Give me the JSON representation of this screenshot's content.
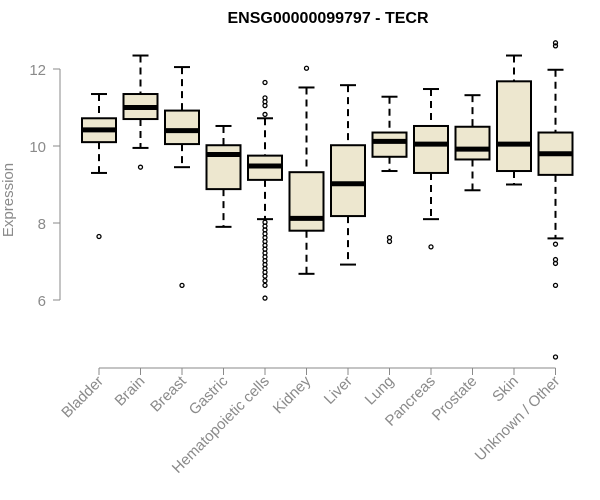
{
  "chart_data": {
    "type": "box",
    "title": "ENSG00000099797 - TECR",
    "xlabel": "",
    "ylabel": "Expression",
    "ylim": [
      4.3,
      13.0
    ],
    "yticks": [
      6,
      8,
      10,
      12
    ],
    "grid": false,
    "legend": "none",
    "categories": [
      "Bladder",
      "Brain",
      "Breast",
      "Gastric",
      "Hematopoietic cells",
      "Kidney",
      "Liver",
      "Lung",
      "Pancreas",
      "Prostate",
      "Skin",
      "Unknown / Other"
    ],
    "boxes": [
      {
        "category": "Bladder",
        "whisker_low": 9.3,
        "q1": 10.1,
        "median": 10.42,
        "q3": 10.72,
        "whisker_high": 11.35,
        "outliers": [
          7.65
        ]
      },
      {
        "category": "Brain",
        "whisker_low": 9.95,
        "q1": 10.7,
        "median": 11.0,
        "q3": 11.35,
        "whisker_high": 12.35,
        "outliers": [
          9.45
        ]
      },
      {
        "category": "Breast",
        "whisker_low": 9.45,
        "q1": 10.05,
        "median": 10.4,
        "q3": 10.92,
        "whisker_high": 12.05,
        "outliers": [
          6.38
        ]
      },
      {
        "category": "Gastric",
        "whisker_low": 7.9,
        "q1": 8.88,
        "median": 9.78,
        "q3": 10.02,
        "whisker_high": 10.52,
        "outliers": []
      },
      {
        "category": "Hematopoietic cells",
        "whisker_low": 8.1,
        "q1": 9.12,
        "median": 9.48,
        "q3": 9.75,
        "whisker_high": 10.72,
        "outliers": [
          11.65,
          11.25,
          11.15,
          11.05,
          10.82,
          8.02,
          7.92,
          7.82,
          7.72,
          7.62,
          7.52,
          7.42,
          7.32,
          7.22,
          7.12,
          7.02,
          6.92,
          6.82,
          6.72,
          6.62,
          6.5,
          6.38,
          6.05
        ]
      },
      {
        "category": "Kidney",
        "whisker_low": 6.68,
        "q1": 7.8,
        "median": 8.12,
        "q3": 9.32,
        "whisker_high": 11.52,
        "outliers": [
          12.02
        ]
      },
      {
        "category": "Liver",
        "whisker_low": 6.92,
        "q1": 8.18,
        "median": 9.02,
        "q3": 10.02,
        "whisker_high": 11.58,
        "outliers": []
      },
      {
        "category": "Lung",
        "whisker_low": 9.35,
        "q1": 9.72,
        "median": 10.12,
        "q3": 10.35,
        "whisker_high": 11.28,
        "outliers": [
          7.62,
          7.52
        ]
      },
      {
        "category": "Pancreas",
        "whisker_low": 8.1,
        "q1": 9.3,
        "median": 10.05,
        "q3": 10.52,
        "whisker_high": 11.48,
        "outliers": [
          7.38
        ]
      },
      {
        "category": "Prostate",
        "whisker_low": 8.85,
        "q1": 9.65,
        "median": 9.92,
        "q3": 10.5,
        "whisker_high": 11.32,
        "outliers": []
      },
      {
        "category": "Skin",
        "whisker_low": 9.0,
        "q1": 9.35,
        "median": 10.05,
        "q3": 11.68,
        "whisker_high": 12.35,
        "outliers": []
      },
      {
        "category": "Unknown / Other",
        "whisker_low": 7.6,
        "q1": 9.25,
        "median": 9.8,
        "q3": 10.35,
        "whisker_high": 11.98,
        "outliers": [
          12.68,
          12.6,
          7.45,
          7.05,
          6.95,
          6.38,
          4.52
        ]
      }
    ],
    "colors": {
      "box_fill": "#ede7cf",
      "box_stroke": "#000000",
      "median": "#000000",
      "axis": "#8a8a8a",
      "title": "#000000"
    }
  }
}
